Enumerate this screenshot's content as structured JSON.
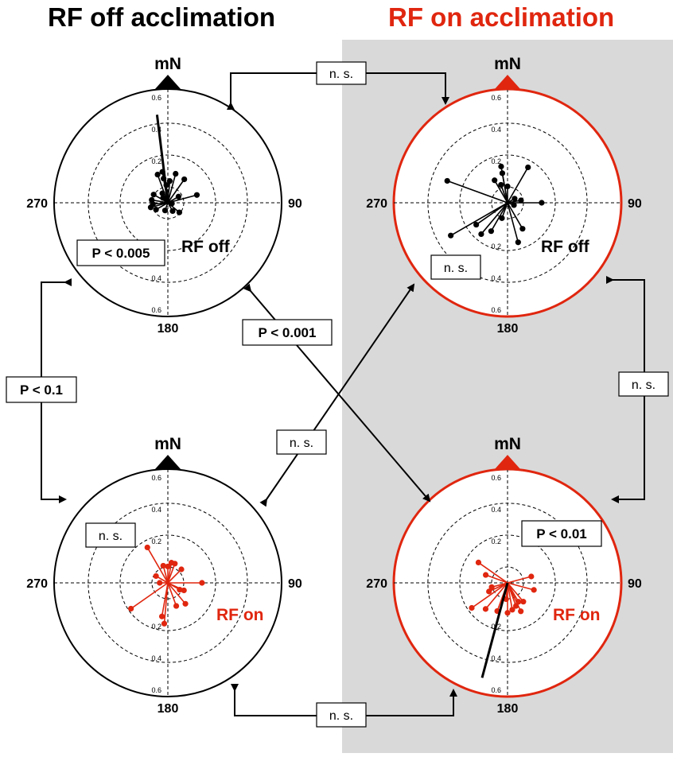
{
  "titles": {
    "left": "RF off acclimation",
    "right": "RF on acclimation"
  },
  "colors": {
    "black": "#000000",
    "red": "#e0260f",
    "shaded_background": "#d9d9d9"
  },
  "plots": [
    {
      "id": "top-left",
      "north_label": "mN",
      "east_label": "90",
      "west_label": "270",
      "south_label": "180",
      "ring_labels": [
        "0.2",
        "0.4",
        "0.6"
      ],
      "condition_label": "RF off",
      "stat_label": "P < 0.005",
      "border_color": "black",
      "vector_color": "black",
      "vectors": [
        [
          -10,
          0.18
        ],
        [
          -30,
          0.08
        ],
        [
          -5,
          0.13
        ],
        [
          5,
          0.16
        ],
        [
          15,
          0.22
        ],
        [
          35,
          0.21
        ],
        [
          60,
          0.09
        ],
        [
          75,
          0.22
        ],
        [
          100,
          0.03
        ],
        [
          130,
          0.11
        ],
        [
          150,
          0.07
        ],
        [
          200,
          0.06
        ],
        [
          240,
          0.1
        ],
        [
          255,
          0.13
        ],
        [
          265,
          0.11
        ],
        [
          280,
          0.12
        ],
        [
          300,
          0.12
        ],
        [
          315,
          0.05
        ],
        [
          340,
          0.22
        ],
        [
          350,
          0.23
        ]
      ],
      "mean_vector": [
        -7,
        0.65
      ]
    },
    {
      "id": "top-right",
      "north_label": "mN",
      "east_label": "90",
      "west_label": "270",
      "south_label": "180",
      "ring_labels": [
        "0.2",
        "0.4",
        "0.6"
      ],
      "condition_label": "RF off",
      "stat_label": "n. s.",
      "border_color": "red",
      "vector_color": "black",
      "vectors": [
        [
          -10,
          0.27
        ],
        [
          0,
          0.12
        ],
        [
          30,
          0.3
        ],
        [
          80,
          0.1
        ],
        [
          90,
          0.25
        ],
        [
          150,
          0.22
        ],
        [
          165,
          0.3
        ],
        [
          200,
          0.12
        ],
        [
          210,
          0.24
        ],
        [
          220,
          0.3
        ],
        [
          235,
          0.28
        ],
        [
          240,
          0.48
        ],
        [
          290,
          0.47
        ],
        [
          330,
          0.19
        ],
        [
          340,
          0.14
        ],
        [
          60,
          0.06
        ],
        [
          110,
          0.05
        ],
        [
          350,
          0.22
        ]
      ],
      "mean_vector": null
    },
    {
      "id": "bottom-left",
      "north_label": "mN",
      "east_label": "90",
      "west_label": "270",
      "south_label": "180",
      "ring_labels": [
        "0.2",
        "0.4",
        "0.6"
      ],
      "condition_label": "RF on",
      "stat_label": "n. s.",
      "border_color": "black",
      "vector_color": "red",
      "vectors": [
        [
          0,
          0.12
        ],
        [
          20,
          0.15
        ],
        [
          45,
          0.14
        ],
        [
          90,
          0.25
        ],
        [
          115,
          0.13
        ],
        [
          140,
          0.2
        ],
        [
          160,
          0.18
        ],
        [
          185,
          0.3
        ],
        [
          190,
          0.25
        ],
        [
          235,
          0.33
        ],
        [
          270,
          0.06
        ],
        [
          300,
          0.1
        ],
        [
          330,
          0.3
        ],
        [
          345,
          0.13
        ],
        [
          10,
          0.15
        ],
        [
          120,
          0.1
        ]
      ],
      "mean_vector": null
    },
    {
      "id": "bottom-right",
      "north_label": "mN",
      "east_label": "90",
      "west_label": "270",
      "south_label": "180",
      "ring_labels": [
        "0.2",
        "0.4",
        "0.6"
      ],
      "condition_label": "RF on",
      "stat_label": "P < 0.01",
      "border_color": "red",
      "vector_color": "red",
      "vectors": [
        [
          75,
          0.18
        ],
        [
          105,
          0.2
        ],
        [
          140,
          0.18
        ],
        [
          150,
          0.16
        ],
        [
          160,
          0.18
        ],
        [
          170,
          0.2
        ],
        [
          185,
          0.12
        ],
        [
          200,
          0.22
        ],
        [
          220,
          0.25
        ],
        [
          235,
          0.32
        ],
        [
          255,
          0.12
        ],
        [
          290,
          0.17
        ],
        [
          305,
          0.26
        ],
        [
          245,
          0.15
        ],
        [
          155,
          0.23
        ],
        [
          180,
          0.22
        ]
      ],
      "mean_vector": [
        195,
        0.72
      ]
    }
  ],
  "comparisons": [
    {
      "id": "top-pair",
      "label": "n. s."
    },
    {
      "id": "left-column",
      "label": "P < 0.1"
    },
    {
      "id": "right-column",
      "label": "n. s."
    },
    {
      "id": "diagonal-down",
      "label": "P < 0.001"
    },
    {
      "id": "diagonal-up",
      "label": "n. s."
    },
    {
      "id": "bottom-pair",
      "label": "n. s."
    }
  ]
}
